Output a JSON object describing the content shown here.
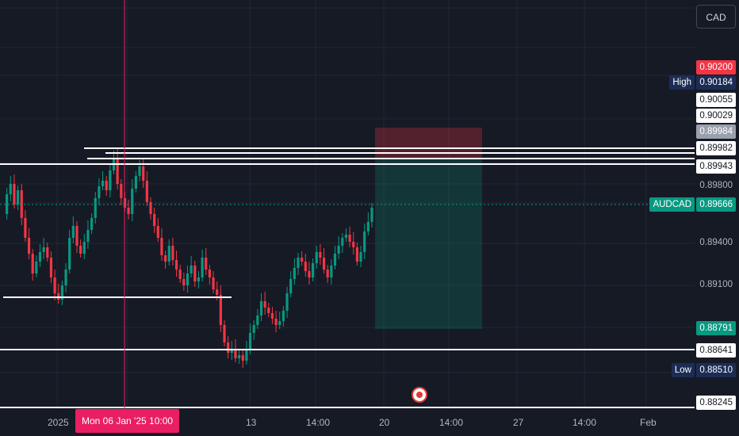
{
  "chart": {
    "symbol": "AUDCAD",
    "currency": "CAD",
    "colors": {
      "bull": "#089981",
      "bear": "#f23645",
      "crosshair": "#e91e63",
      "background": "#161a25"
    },
    "price_labels": {
      "top_red": "0.90200",
      "high_prefix": "High",
      "high": "0.90184",
      "p1": "0.90055",
      "p2": "0.90029",
      "p3": "0.89984",
      "p4": "0.89982",
      "p5": "0.89943",
      "axis1": "0.89800",
      "current_prefix": "AUDCAD",
      "current": "0.89666",
      "axis2": "0.89400",
      "axis3": "0.89100",
      "target": "0.88791",
      "p6": "0.88641",
      "low_prefix": "Low",
      "low": "0.88510",
      "p7": "0.88245"
    },
    "time_labels": {
      "t1": "2025",
      "t2": "13",
      "t3": "14:00",
      "t4": "20",
      "t5": "14:00",
      "t6": "27",
      "t7": "14:00",
      "t8": "Feb"
    },
    "crosshair_time": "Mon 06 Jan '25   10:00"
  }
}
